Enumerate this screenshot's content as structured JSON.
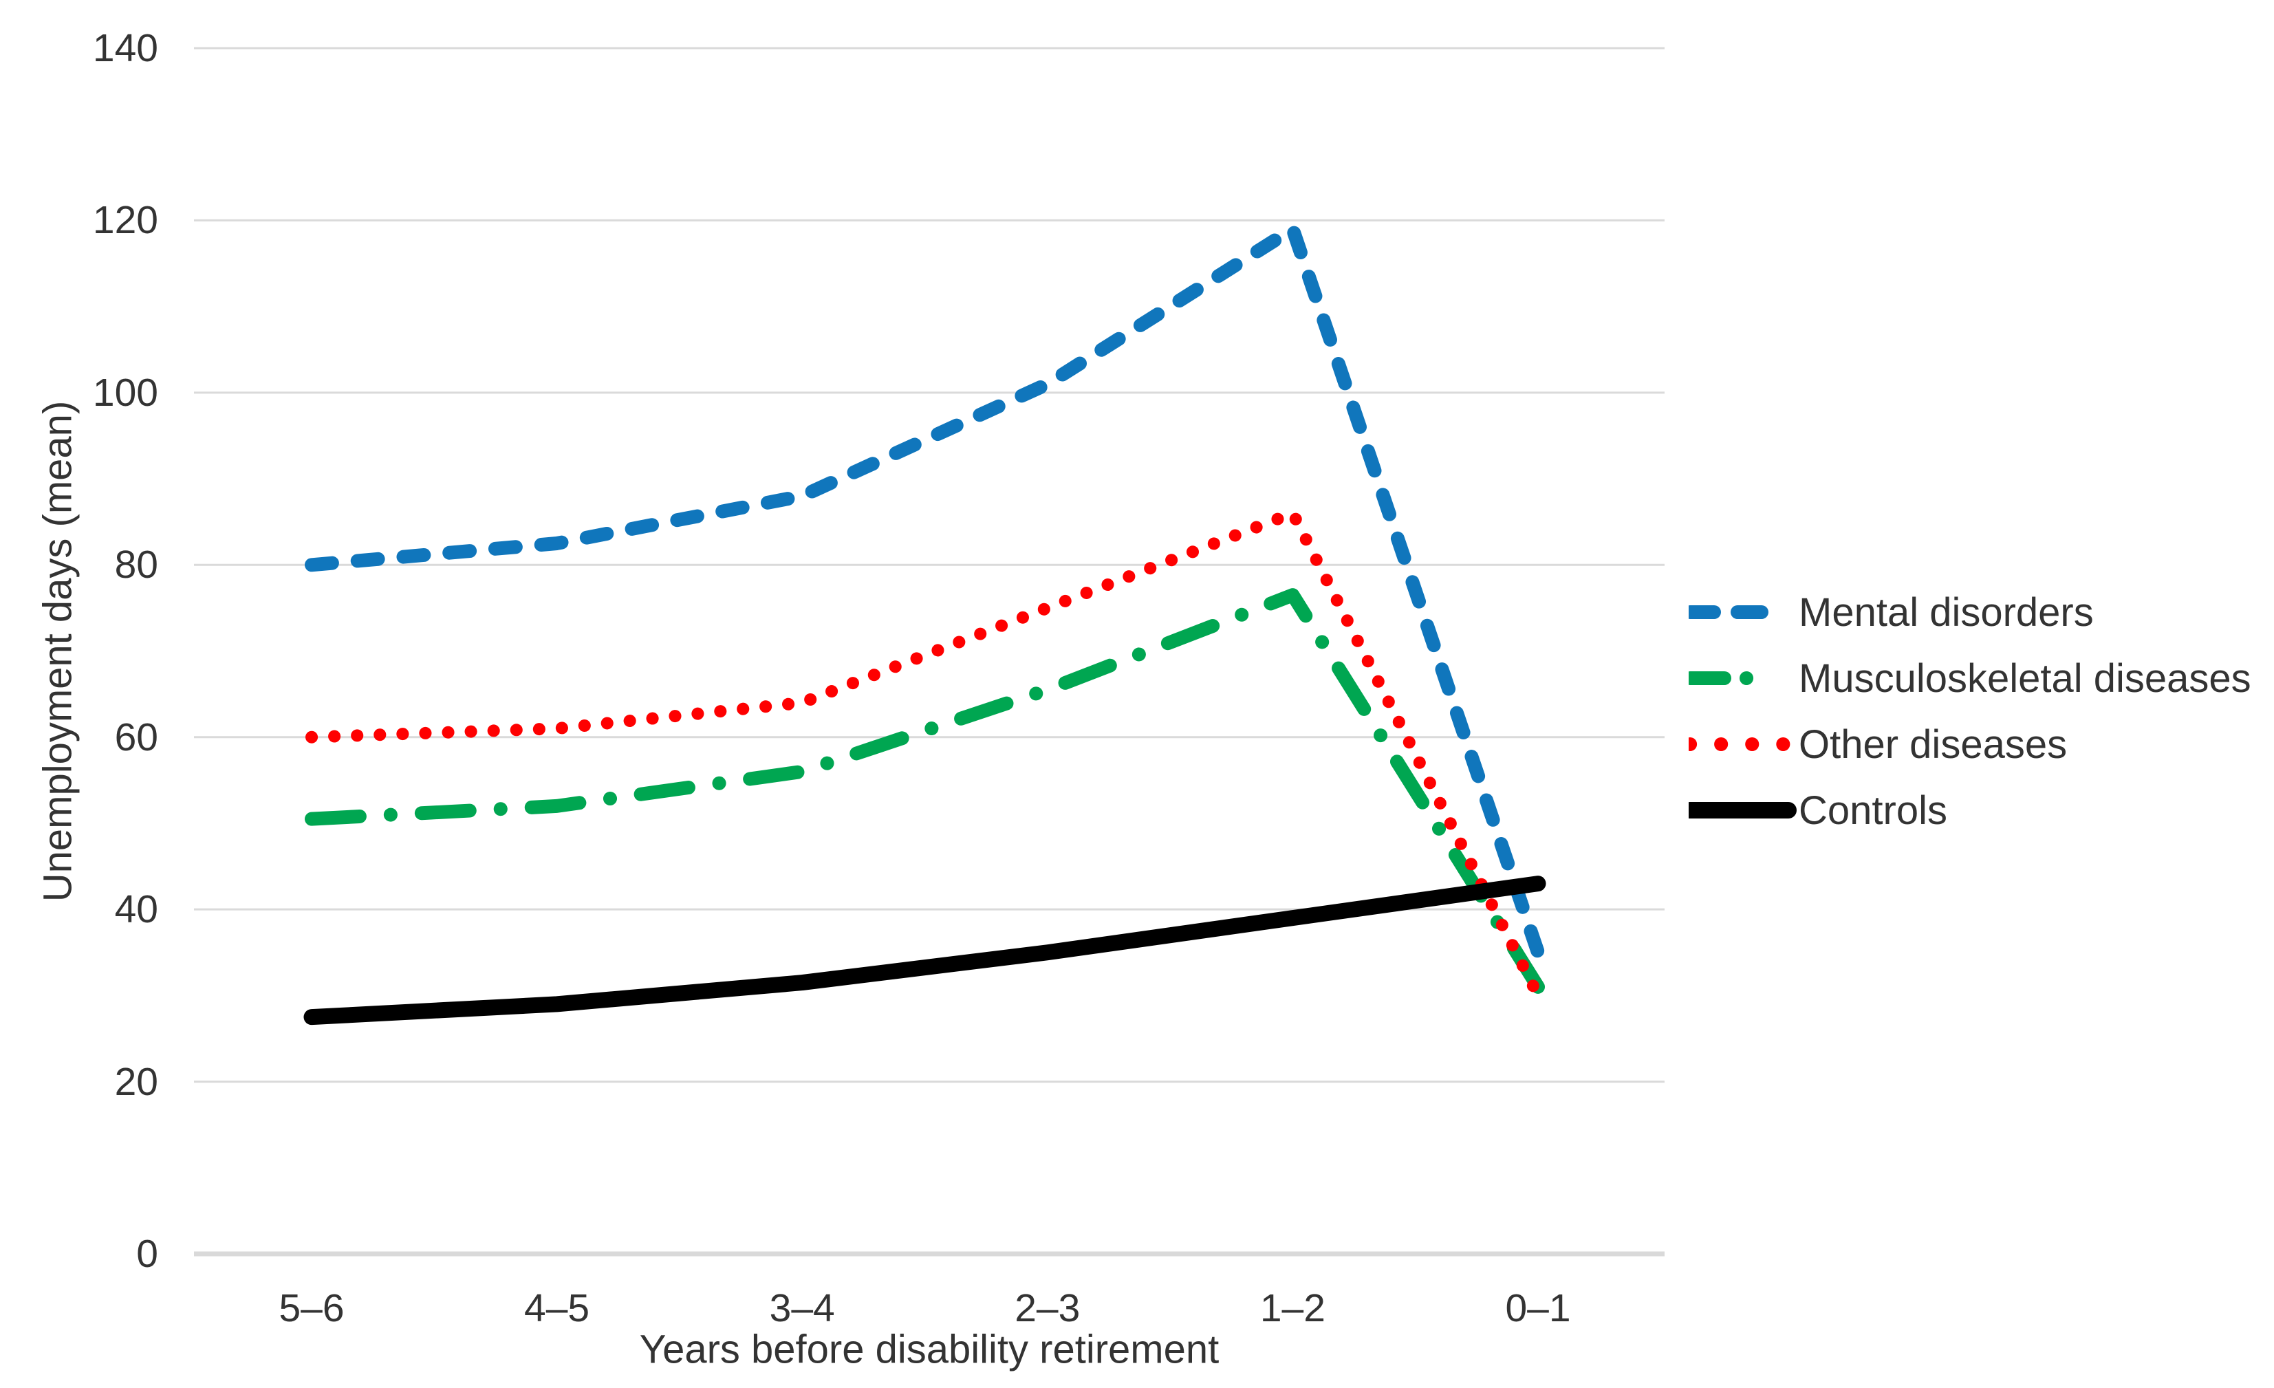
{
  "chart_data": {
    "type": "line",
    "title": "",
    "xlabel": "Years before disability retirement",
    "ylabel": "Unemployment days (mean)",
    "categories": [
      "5–6",
      "4–5",
      "3–4",
      "2–3",
      "1–2",
      "0–1"
    ],
    "ylim": [
      0,
      140
    ],
    "ytick_step": 20,
    "yticks": [
      "0",
      "20",
      "40",
      "60",
      "80",
      "100",
      "120",
      "140"
    ],
    "grid": "horizontal",
    "legend_position": "right",
    "series": [
      {
        "name": "Mental disorders",
        "color": "#1076bc",
        "style": "dashed",
        "values": [
          80,
          82.5,
          88,
          101,
          119,
          35
        ]
      },
      {
        "name": "Musculoskeletal diseases",
        "color": "#00a651",
        "style": "dash-dot",
        "values": [
          50.5,
          52,
          56,
          65.5,
          76.5,
          31
        ]
      },
      {
        "name": "Other diseases",
        "color": "#fe0000",
        "style": "dotted",
        "values": [
          60,
          61,
          64,
          75,
          86,
          30
        ]
      },
      {
        "name": "Controls",
        "color": "#000000",
        "style": "solid",
        "values": [
          27.5,
          29,
          31.5,
          35,
          39,
          43
        ]
      }
    ]
  },
  "colors": {
    "gridline": "#dadada",
    "axis_line": "#d9d9d9",
    "text": "#333333",
    "background": "#ffffff"
  }
}
